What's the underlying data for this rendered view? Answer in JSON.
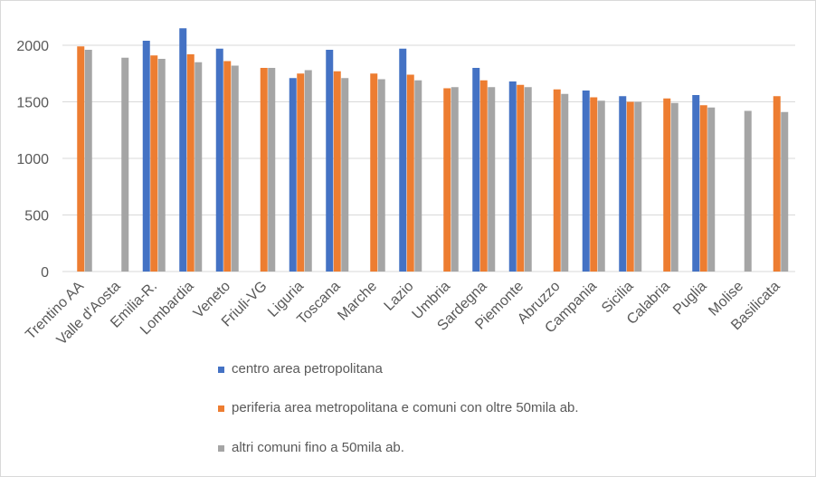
{
  "chart_data": {
    "type": "bar",
    "categories": [
      "Trentino AA",
      "Valle d'Aosta",
      "Emilia-R.",
      "Lombardia",
      "Veneto",
      "Friuli-VG",
      "Liguria",
      "Toscana",
      "Marche",
      "Lazio",
      "Umbria",
      "Sardegna",
      "Piemonte",
      "Abruzzo",
      "Campania",
      "Sicilia",
      "Calabria",
      "Puglia",
      "Molise",
      "Basilicata"
    ],
    "series": [
      {
        "name": "centro area petropolitana",
        "color": "#4472c4",
        "values": [
          null,
          null,
          2040,
          2150,
          1970,
          null,
          1710,
          1960,
          null,
          1970,
          null,
          1800,
          1680,
          null,
          1600,
          1550,
          null,
          1560,
          null,
          null
        ]
      },
      {
        "name": "periferia area metropolitana e comuni con oltre 50mila ab.",
        "color": "#ed7d31",
        "values": [
          1990,
          null,
          1910,
          1920,
          1860,
          1800,
          1750,
          1770,
          1750,
          1740,
          1620,
          1690,
          1650,
          1610,
          1540,
          1500,
          1530,
          1470,
          null,
          1550
        ]
      },
      {
        "name": "altri comuni fino a 50mila ab.",
        "color": "#a5a5a5",
        "values": [
          1960,
          1890,
          1880,
          1850,
          1820,
          1800,
          1780,
          1710,
          1700,
          1690,
          1630,
          1630,
          1630,
          1570,
          1510,
          1500,
          1490,
          1450,
          1420,
          1410
        ]
      }
    ],
    "yticks": [
      "0",
      "500",
      "1000",
      "1500",
      "2000"
    ],
    "ylim": [
      0,
      2200
    ],
    "grid": true,
    "legend_position": "bottom"
  }
}
